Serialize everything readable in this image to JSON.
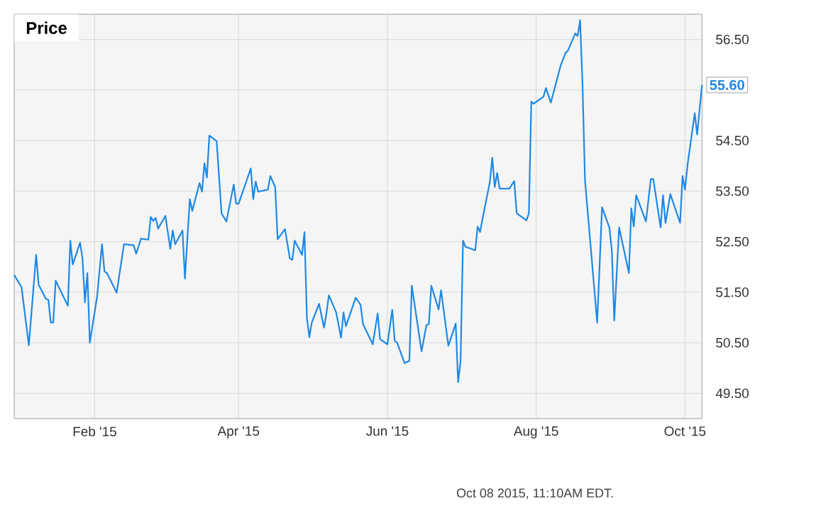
{
  "chart_data": {
    "type": "line",
    "title": "Price",
    "color": "#1e88e5",
    "grid": true,
    "marker": "none",
    "line_style": "solid",
    "xlim": [
      "2014-12-30",
      "2015-10-08"
    ],
    "ylim": [
      49.0,
      57.0
    ],
    "xticks": [
      {
        "value": "2015-02-01",
        "label": "Feb '15"
      },
      {
        "value": "2015-04-01",
        "label": "Apr '15"
      },
      {
        "value": "2015-06-01",
        "label": "Jun '15"
      },
      {
        "value": "2015-08-01",
        "label": "Aug '15"
      },
      {
        "value": "2015-10-01",
        "label": "Oct '15"
      }
    ],
    "yticks": [
      {
        "value": 49.5,
        "label": "49.50"
      },
      {
        "value": 50.5,
        "label": "50.50"
      },
      {
        "value": 51.5,
        "label": "51.50"
      },
      {
        "value": 52.5,
        "label": "52.50"
      },
      {
        "value": 53.5,
        "label": "53.50"
      },
      {
        "value": 54.5,
        "label": "54.50"
      },
      {
        "value": 55.5,
        "label": null
      },
      {
        "value": 56.5,
        "label": "56.50"
      }
    ],
    "x": [
      "2014-12-30",
      "2015-01-02",
      "2015-01-05",
      "2015-01-08",
      "2015-01-09",
      "2015-01-12",
      "2015-01-13",
      "2015-01-14",
      "2015-01-15",
      "2015-01-16",
      "2015-01-21",
      "2015-01-22",
      "2015-01-23",
      "2015-01-26",
      "2015-01-27",
      "2015-01-28",
      "2015-01-29",
      "2015-01-30",
      "2015-02-02",
      "2015-02-04",
      "2015-02-05",
      "2015-02-06",
      "2015-02-10",
      "2015-02-13",
      "2015-02-17",
      "2015-02-18",
      "2015-02-20",
      "2015-02-23",
      "2015-02-24",
      "2015-02-25",
      "2015-02-26",
      "2015-02-27",
      "2015-03-02",
      "2015-03-04",
      "2015-03-05",
      "2015-03-06",
      "2015-03-09",
      "2015-03-10",
      "2015-03-12",
      "2015-03-13",
      "2015-03-16",
      "2015-03-17",
      "2015-03-18",
      "2015-03-19",
      "2015-03-20",
      "2015-03-23",
      "2015-03-25",
      "2015-03-27",
      "2015-03-30",
      "2015-03-31",
      "2015-04-01",
      "2015-04-06",
      "2015-04-07",
      "2015-04-08",
      "2015-04-09",
      "2015-04-13",
      "2015-04-14",
      "2015-04-16",
      "2015-04-17",
      "2015-04-20",
      "2015-04-22",
      "2015-04-23",
      "2015-04-24",
      "2015-04-27",
      "2015-04-28",
      "2015-04-29",
      "2015-04-30",
      "2015-05-01",
      "2015-05-04",
      "2015-05-06",
      "2015-05-07",
      "2015-05-08",
      "2015-05-11",
      "2015-05-13",
      "2015-05-14",
      "2015-05-15",
      "2015-05-19",
      "2015-05-21",
      "2015-05-22",
      "2015-05-26",
      "2015-05-28",
      "2015-05-29",
      "2015-06-01",
      "2015-06-03",
      "2015-06-04",
      "2015-06-05",
      "2015-06-08",
      "2015-06-10",
      "2015-06-11",
      "2015-06-15",
      "2015-06-17",
      "2015-06-18",
      "2015-06-19",
      "2015-06-22",
      "2015-06-23",
      "2015-06-26",
      "2015-06-29",
      "2015-06-30",
      "2015-07-01",
      "2015-07-02",
      "2015-07-03",
      "2015-07-07",
      "2015-07-08",
      "2015-07-09",
      "2015-07-10",
      "2015-07-13",
      "2015-07-14",
      "2015-07-15",
      "2015-07-16",
      "2015-07-17",
      "2015-07-21",
      "2015-07-23",
      "2015-07-24",
      "2015-07-28",
      "2015-07-29",
      "2015-07-30",
      "2015-07-31",
      "2015-08-04",
      "2015-08-05",
      "2015-08-07",
      "2015-08-11",
      "2015-08-13",
      "2015-08-14",
      "2015-08-17",
      "2015-08-18",
      "2015-08-19",
      "2015-08-20",
      "2015-08-21",
      "2015-08-26",
      "2015-08-28",
      "2015-08-31",
      "2015-09-01",
      "2015-09-02",
      "2015-09-04",
      "2015-09-08",
      "2015-09-09",
      "2015-09-10",
      "2015-09-11",
      "2015-09-15",
      "2015-09-17",
      "2015-09-18",
      "2015-09-21",
      "2015-09-22",
      "2015-09-23",
      "2015-09-25",
      "2015-09-29",
      "2015-09-30",
      "2015-10-01",
      "2015-10-02",
      "2015-10-05",
      "2015-10-06",
      "2015-10-07",
      "2015-10-08"
    ],
    "values": [
      51.84,
      51.6,
      50.45,
      52.24,
      51.65,
      51.37,
      51.35,
      50.9,
      50.9,
      51.73,
      51.23,
      52.52,
      52.05,
      52.48,
      52.17,
      51.3,
      51.88,
      50.5,
      51.42,
      52.45,
      51.91,
      51.88,
      51.49,
      52.45,
      52.43,
      52.26,
      52.56,
      52.54,
      52.99,
      52.91,
      52.97,
      52.76,
      53.01,
      52.36,
      52.72,
      52.45,
      52.72,
      51.77,
      53.34,
      53.11,
      53.66,
      53.49,
      54.05,
      53.77,
      54.6,
      54.49,
      53.06,
      52.9,
      53.63,
      53.25,
      53.25,
      53.95,
      53.34,
      53.69,
      53.49,
      53.53,
      53.8,
      53.58,
      52.55,
      52.75,
      52.17,
      52.14,
      52.52,
      52.24,
      52.69,
      50.99,
      50.61,
      50.9,
      51.27,
      50.8,
      51.08,
      51.44,
      51.1,
      50.6,
      51.1,
      50.83,
      51.39,
      51.25,
      50.87,
      50.47,
      51.08,
      50.57,
      50.47,
      51.15,
      50.54,
      50.5,
      50.1,
      50.14,
      51.63,
      50.33,
      50.85,
      50.87,
      51.63,
      51.16,
      51.54,
      50.44,
      50.88,
      49.72,
      50.14,
      52.52,
      52.4,
      52.33,
      52.8,
      52.69,
      52.95,
      53.68,
      54.16,
      53.58,
      53.86,
      53.55,
      53.55,
      53.7,
      53.06,
      52.92,
      53.06,
      55.27,
      55.23,
      55.37,
      55.54,
      55.25,
      55.98,
      56.23,
      56.28,
      56.62,
      56.57,
      56.88,
      55.6,
      53.72,
      50.9,
      53.18,
      52.78,
      52.33,
      50.94,
      52.78,
      51.88,
      53.16,
      52.8,
      53.42,
      52.9,
      53.74,
      53.74,
      52.78,
      53.42,
      52.87,
      53.44,
      52.87,
      53.8,
      53.53,
      54.0,
      55.04,
      54.62,
      55.13,
      55.6
    ],
    "annotations": [
      {
        "text": "55.60",
        "x": "2015-10-08",
        "y": 55.6
      },
      "Oct 08 2015, 11:10AM EDT."
    ]
  }
}
